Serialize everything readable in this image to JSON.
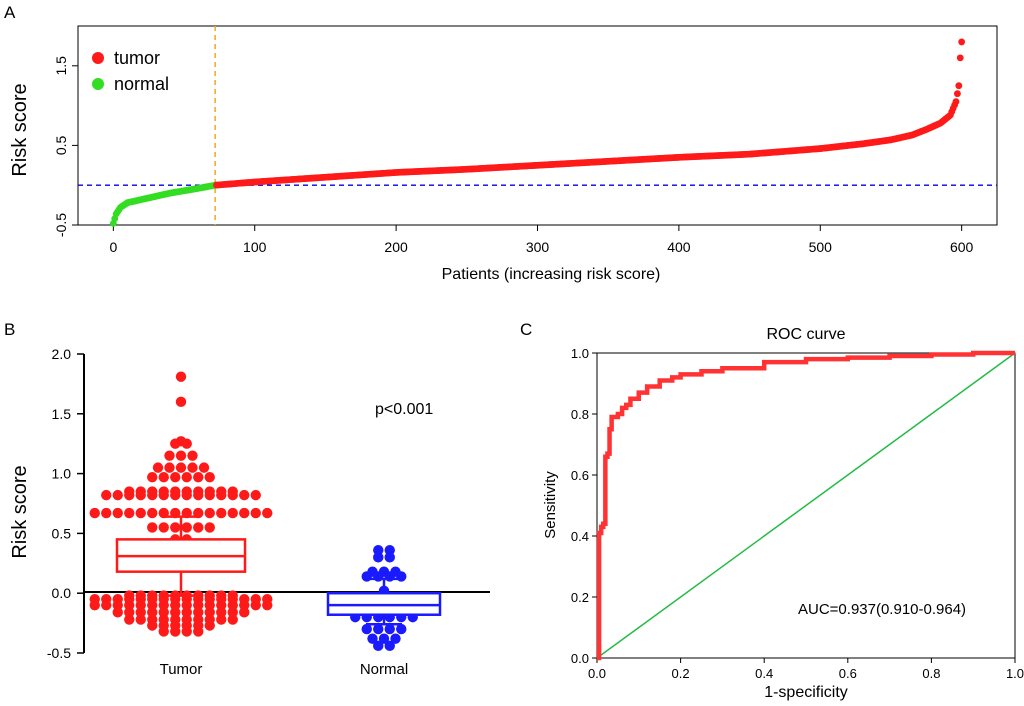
{
  "colors": {
    "tumor": "#ff1a1a",
    "normal": "#33dd22",
    "normal_box": "#1a1aff",
    "cutoff_h": "#0000ee",
    "cutoff_v": "#f5a623",
    "roc": "#ff3333",
    "diag": "#22bb44"
  },
  "panels": {
    "a": {
      "label": "A"
    },
    "b": {
      "label": "B"
    },
    "c": {
      "label": "C"
    }
  },
  "chart_data": [
    {
      "id": "risk-curve",
      "type": "scatter",
      "title": "",
      "xlabel": "Patients (increasing risk score)",
      "ylabel": "Risk score",
      "xlim": [
        -25,
        625
      ],
      "ylim": [
        -0.5,
        2.0
      ],
      "xticks": [
        0,
        100,
        200,
        300,
        400,
        500,
        600
      ],
      "yticks": [
        -0.5,
        0.5,
        1.5
      ],
      "ytick_labels": [
        "-0.5",
        "0.5",
        "1.5"
      ],
      "legend": {
        "position": "top-left",
        "entries": [
          "tumor",
          "normal"
        ]
      },
      "cutoff_y": 0.0,
      "cutoff_x": 72,
      "series": [
        {
          "name": "normal",
          "x": [
            0,
            2,
            5,
            10,
            20,
            30,
            40,
            50,
            60,
            72
          ],
          "y": [
            -0.48,
            -0.36,
            -0.28,
            -0.22,
            -0.18,
            -0.14,
            -0.1,
            -0.07,
            -0.04,
            0.0
          ]
        },
        {
          "name": "tumor",
          "x": [
            72,
            100,
            150,
            200,
            250,
            300,
            350,
            400,
            450,
            500,
            530,
            550,
            565,
            575,
            585,
            592,
            596,
            598,
            599,
            600
          ],
          "y": [
            0.0,
            0.04,
            0.1,
            0.16,
            0.2,
            0.25,
            0.3,
            0.35,
            0.39,
            0.46,
            0.52,
            0.57,
            0.63,
            0.7,
            0.78,
            0.88,
            1.05,
            1.25,
            1.6,
            1.8
          ]
        }
      ]
    },
    {
      "id": "box-dot",
      "type": "scatter",
      "title": "",
      "xlabel": "",
      "ylabel": "Risk score",
      "ylim": [
        -0.5,
        2.0
      ],
      "yticks": [
        "-0.5",
        "0.0",
        "0.5",
        "1.0",
        "1.5",
        "2.0"
      ],
      "categories": [
        "Tumor",
        "Normal"
      ],
      "annotation": "p<0.001",
      "groups": [
        {
          "name": "Tumor",
          "box": {
            "q1": 0.18,
            "median": 0.31,
            "q3": 0.45,
            "whisker_low": -0.02,
            "whisker_high": 0.64
          },
          "levels": [
            {
              "y": 1.81,
              "n": 1
            },
            {
              "y": 1.6,
              "n": 1
            },
            {
              "y": 1.27,
              "n": 1
            },
            {
              "y": 1.25,
              "n": 2
            },
            {
              "y": 1.15,
              "n": 3
            },
            {
              "y": 1.05,
              "n": 5
            },
            {
              "y": 0.97,
              "n": 6
            },
            {
              "y": 0.85,
              "n": 10
            },
            {
              "y": 0.82,
              "n": 14
            },
            {
              "y": 0.67,
              "n": 16
            },
            {
              "y": 0.55,
              "n": 6
            },
            {
              "y": 0.45,
              "n": 2
            },
            {
              "y": -0.02,
              "n": 10
            },
            {
              "y": -0.05,
              "n": 16
            },
            {
              "y": -0.1,
              "n": 16
            },
            {
              "y": -0.16,
              "n": 12
            },
            {
              "y": -0.22,
              "n": 10
            },
            {
              "y": -0.27,
              "n": 6
            },
            {
              "y": -0.32,
              "n": 4
            }
          ]
        },
        {
          "name": "Normal",
          "box": {
            "q1": -0.18,
            "median": -0.1,
            "q3": 0.0,
            "whisker_low": -0.26,
            "whisker_high": 0.12
          },
          "levels": [
            {
              "y": 0.36,
              "n": 2
            },
            {
              "y": 0.3,
              "n": 2
            },
            {
              "y": 0.18,
              "n": 3
            },
            {
              "y": 0.14,
              "n": 4
            },
            {
              "y": 0.02,
              "n": 1
            },
            {
              "y": -0.2,
              "n": 6
            },
            {
              "y": -0.3,
              "n": 4
            },
            {
              "y": -0.38,
              "n": 3
            },
            {
              "y": -0.44,
              "n": 2
            }
          ]
        }
      ]
    },
    {
      "id": "roc",
      "type": "line",
      "title": "ROC curve",
      "xlabel": "1-specificity",
      "ylabel": "Sensitivity",
      "xlim": [
        0,
        1
      ],
      "ylim": [
        0,
        1
      ],
      "xticks": [
        "0.0",
        "0.2",
        "0.4",
        "0.6",
        "0.8",
        "1.0"
      ],
      "yticks": [
        "0.0",
        "0.2",
        "0.4",
        "0.6",
        "0.8",
        "1.0"
      ],
      "annotation": "AUC=0.937(0.910-0.964)",
      "series": [
        {
          "name": "ROC",
          "x": [
            0,
            0.005,
            0.01,
            0.015,
            0.02,
            0.025,
            0.03,
            0.035,
            0.04,
            0.05,
            0.06,
            0.07,
            0.08,
            0.1,
            0.12,
            0.15,
            0.18,
            0.2,
            0.25,
            0.3,
            0.4,
            0.5,
            0.6,
            0.7,
            0.8,
            0.9,
            1.0
          ],
          "y": [
            0,
            0.41,
            0.43,
            0.44,
            0.66,
            0.67,
            0.75,
            0.79,
            0.79,
            0.8,
            0.82,
            0.83,
            0.85,
            0.87,
            0.89,
            0.91,
            0.92,
            0.93,
            0.94,
            0.95,
            0.97,
            0.98,
            0.985,
            0.99,
            0.995,
            1.0,
            1.0
          ]
        },
        {
          "name": "reference",
          "x": [
            0,
            1
          ],
          "y": [
            0,
            1
          ]
        }
      ]
    }
  ]
}
